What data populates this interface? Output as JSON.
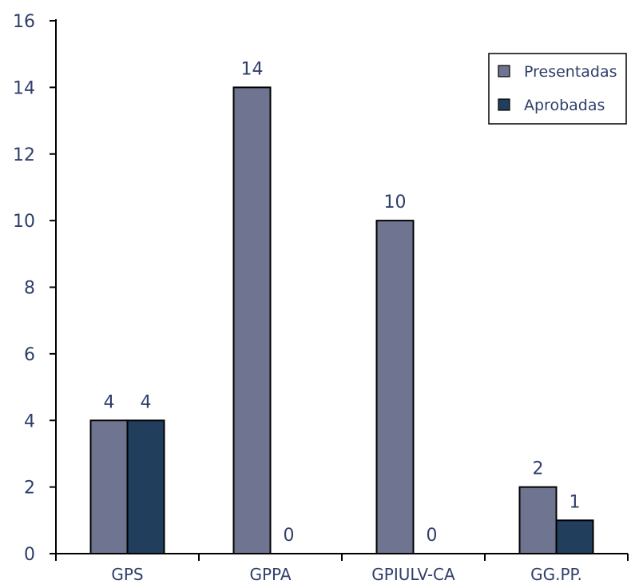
{
  "chart_data": {
    "type": "bar",
    "categories": [
      "GPS",
      "GPPA",
      "GPIULV-CA",
      "GG.PP."
    ],
    "series": [
      {
        "name": "Presentadas",
        "values": [
          4,
          14,
          10,
          2
        ],
        "color": "#6f7490"
      },
      {
        "name": "Aprobadas",
        "values": [
          4,
          0,
          0,
          1
        ],
        "color": "#213e5c"
      }
    ],
    "title": "",
    "xlabel": "",
    "ylabel": "",
    "ylim": [
      0,
      16
    ],
    "yticks": [
      0,
      2,
      4,
      6,
      8,
      10,
      12,
      14,
      16
    ],
    "grid": false,
    "legend_position": "top-right",
    "text_color": "#2f3f6b"
  }
}
